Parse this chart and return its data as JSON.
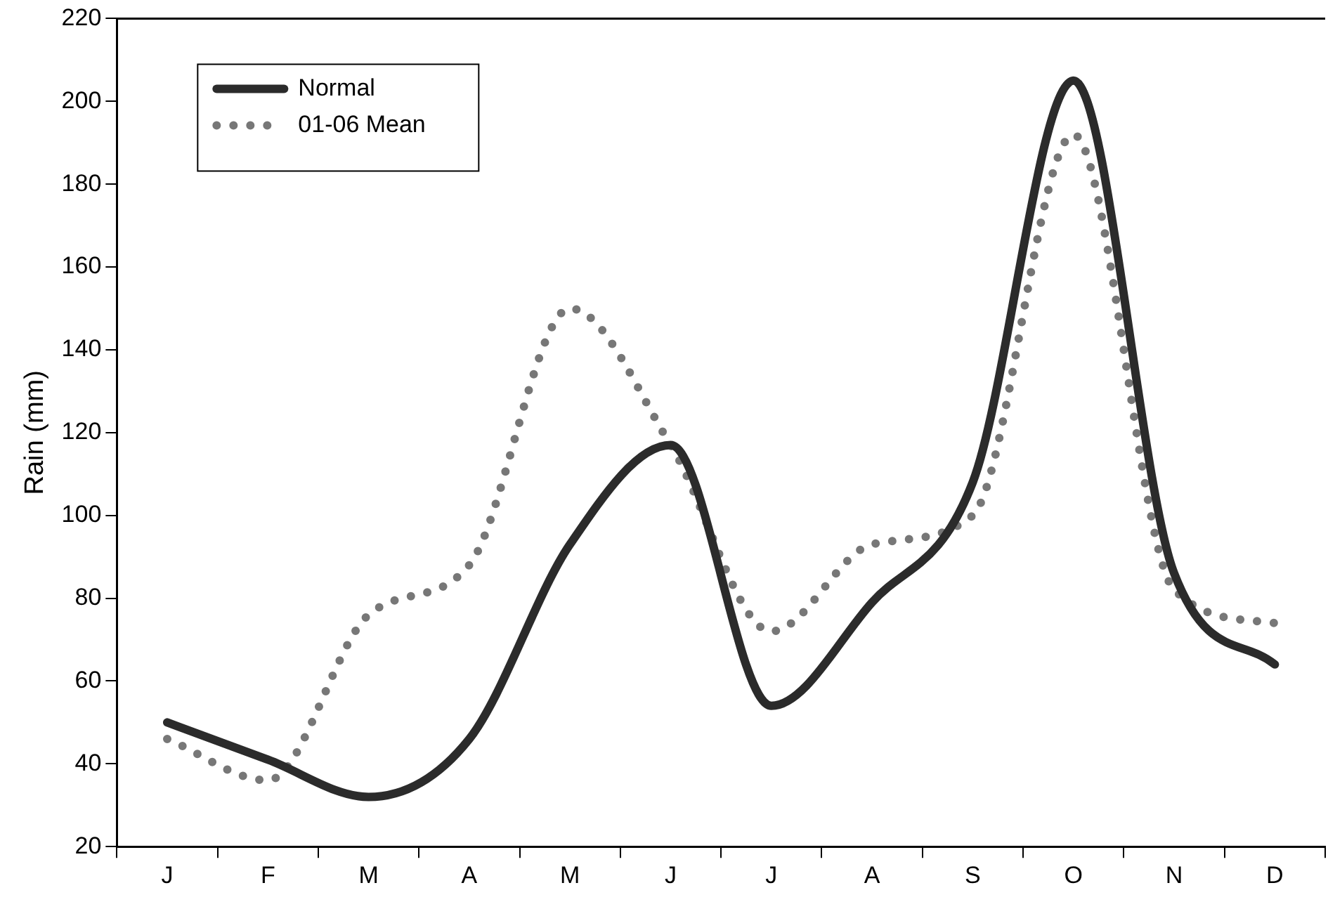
{
  "chart_data": {
    "type": "line",
    "ylabel": "Rain (mm)",
    "categories": [
      "J",
      "F",
      "M",
      "A",
      "M",
      "J",
      "J",
      "A",
      "S",
      "O",
      "N",
      "D"
    ],
    "series": [
      {
        "name": "Normal",
        "color": "#2b2b2b",
        "line_style": "solid",
        "values": [
          50,
          41,
          32,
          46,
          93,
          117,
          54,
          79,
          108,
          205,
          86,
          64
        ]
      },
      {
        "name": "01-06 Mean",
        "color": "#777777",
        "line_style": "dotted",
        "values": [
          46,
          36,
          76,
          88,
          150,
          117,
          72,
          93,
          100,
          192,
          82,
          74
        ]
      }
    ],
    "ylim": [
      20,
      220
    ],
    "yticks": [
      20,
      40,
      60,
      80,
      100,
      120,
      140,
      160,
      180,
      200,
      220
    ],
    "grid": false,
    "legend": "top left",
    "marker": "none"
  }
}
